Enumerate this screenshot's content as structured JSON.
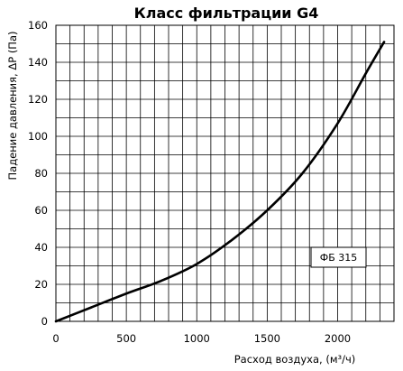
{
  "chart_data": {
    "type": "line",
    "title": "Класс фильтрации G4",
    "xlabel": "Расход воздуха, (м³/ч)",
    "ylabel": "Падение давления, ΔР (Па)",
    "xlim": [
      0,
      2400
    ],
    "ylim": [
      0,
      160
    ],
    "x_ticks": [
      0,
      500,
      1000,
      1500,
      2000
    ],
    "y_ticks": [
      0,
      20,
      40,
      60,
      80,
      100,
      120,
      140,
      160
    ],
    "grid": true,
    "series": [
      {
        "name": "ФБ 315",
        "color": "#000000",
        "x": [
          0,
          250,
          500,
          750,
          1000,
          1250,
          1500,
          1750,
          2000,
          2200,
          2330
        ],
        "y": [
          0,
          7.5,
          15,
          22,
          31,
          44,
          60,
          80,
          107,
          134,
          151
        ]
      }
    ],
    "legend": {
      "placement": "lower-right",
      "text": "ФБ 315"
    }
  }
}
